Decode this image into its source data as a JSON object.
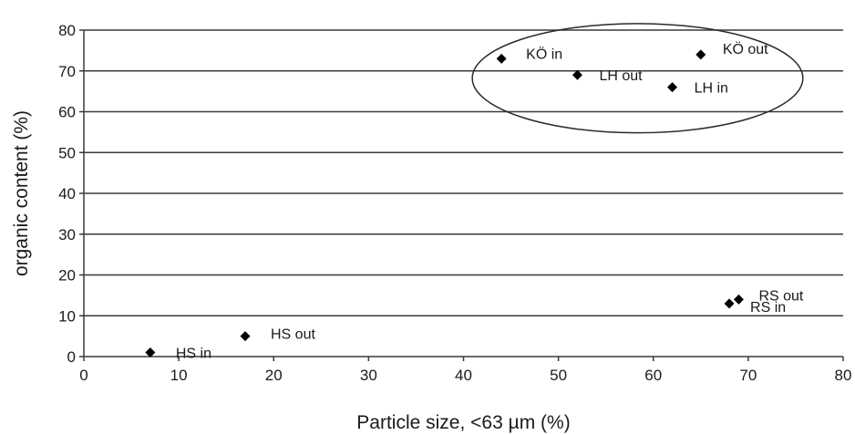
{
  "chart_data": {
    "type": "scatter",
    "title": "",
    "xlabel": "Particle size, <63 µm  (%)",
    "ylabel": "organic content (%)",
    "xlim": [
      0,
      80
    ],
    "ylim": [
      0,
      80
    ],
    "xticks": [
      0,
      10,
      20,
      30,
      40,
      50,
      60,
      70,
      80
    ],
    "yticks": [
      0,
      10,
      20,
      30,
      40,
      50,
      60,
      70,
      80
    ],
    "grid": "horizontal",
    "marker": "diamond",
    "colors": {
      "marker": "#000000",
      "grid": "#3a3a3a",
      "text": "#1a1a1a"
    },
    "points": [
      {
        "label": "HS in",
        "x": 7,
        "y": 1
      },
      {
        "label": "HS out",
        "x": 17,
        "y": 5
      },
      {
        "label": "KÖ in",
        "x": 44,
        "y": 73
      },
      {
        "label": "LH out",
        "x": 52,
        "y": 69
      },
      {
        "label": "LH in",
        "x": 62,
        "y": 66
      },
      {
        "label": "KÖ out",
        "x": 65,
        "y": 74
      },
      {
        "label": "RS in",
        "x": 68,
        "y": 13
      },
      {
        "label": "RS out",
        "x": 69,
        "y": 14
      }
    ],
    "annotations": [
      {
        "type": "ellipse",
        "encloses": [
          "KÖ in",
          "LH out",
          "LH in",
          "KÖ out"
        ]
      }
    ]
  }
}
